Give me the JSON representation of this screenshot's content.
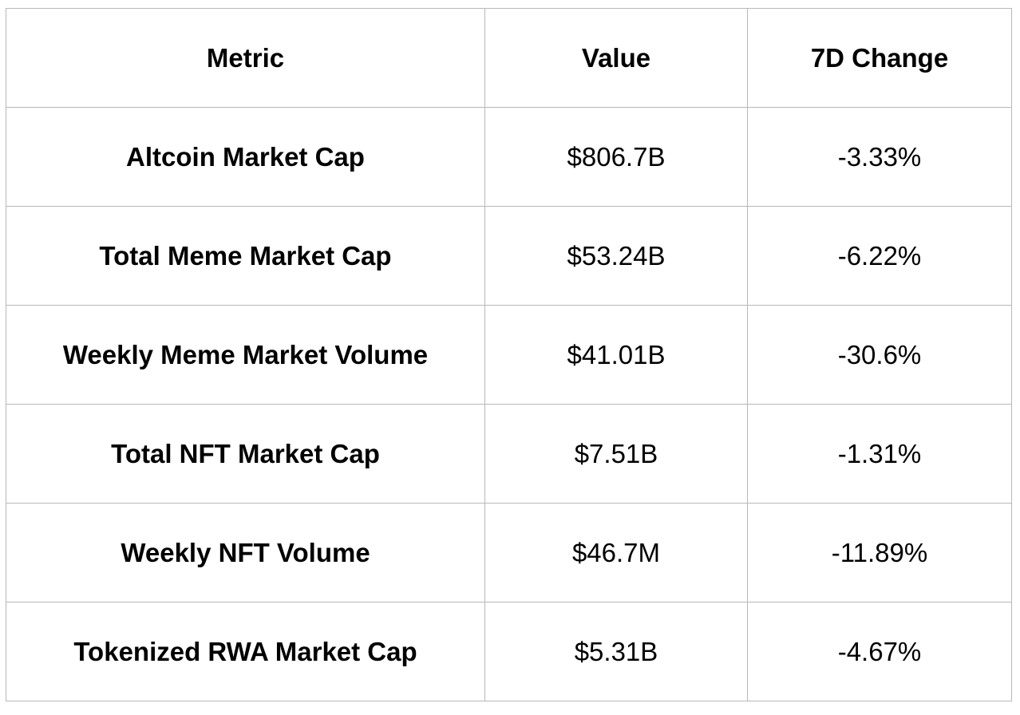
{
  "table": {
    "headers": {
      "metric": "Metric",
      "value": "Value",
      "change": "7D Change"
    },
    "rows": [
      {
        "metric": "Altcoin Market Cap",
        "value": "$806.7B",
        "change": "-3.33%"
      },
      {
        "metric": "Total Meme Market Cap",
        "value": "$53.24B",
        "change": "-6.22%"
      },
      {
        "metric": "Weekly Meme Market Volume",
        "value": "$41.01B",
        "change": "-30.6%"
      },
      {
        "metric": "Total NFT Market Cap",
        "value": "$7.51B",
        "change": "-1.31%"
      },
      {
        "metric": "Weekly NFT Volume",
        "value": "$46.7M",
        "change": "-11.89%"
      },
      {
        "metric": "Tokenized RWA Market Cap",
        "value": "$5.31B",
        "change": "-4.67%"
      }
    ]
  },
  "colors": {
    "border": "#b8b8b8",
    "text": "#000000",
    "background": "#ffffff"
  }
}
